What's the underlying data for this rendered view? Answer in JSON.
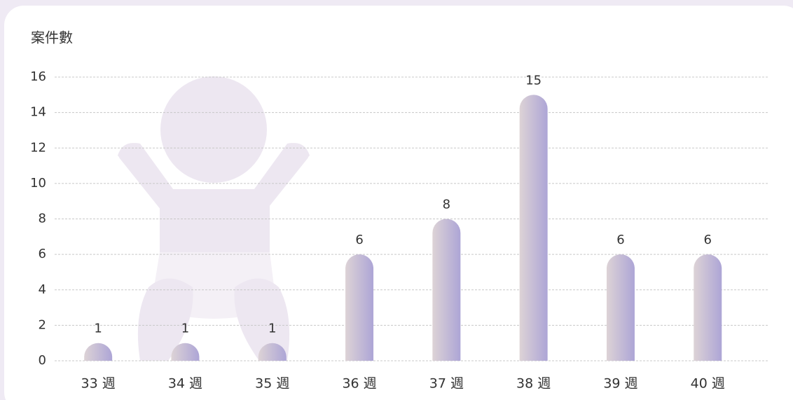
{
  "chart_data": {
    "type": "bar",
    "ylabel": "案件數",
    "categories": [
      "33 週",
      "34 週",
      "35 週",
      "36 週",
      "37 週",
      "38 週",
      "39 週",
      "40 週"
    ],
    "values": [
      1,
      1,
      1,
      6,
      8,
      15,
      6,
      6
    ],
    "color": "#b0a8d4",
    "ylim": [
      0,
      16
    ],
    "yticks": [
      0,
      2,
      4,
      6,
      8,
      10,
      12,
      14,
      16
    ],
    "grid": true
  }
}
